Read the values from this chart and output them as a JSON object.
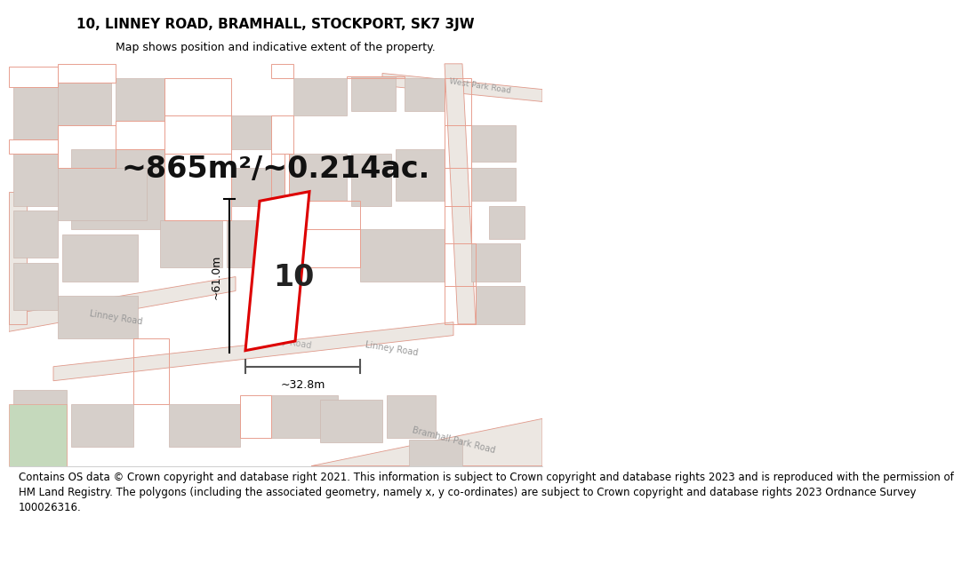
{
  "title_line1": "10, LINNEY ROAD, BRAMHALL, STOCKPORT, SK7 3JW",
  "title_line2": "Map shows position and indicative extent of the property.",
  "area_text": "~865m²/~0.214ac.",
  "label_number": "10",
  "dim_height": "~61.0m",
  "dim_width": "~32.8m",
  "footer_line1": "Contains OS data © Crown copyright and database right 2021. This information is subject to Crown copyright and database rights 2023 and is reproduced with the permission of",
  "footer_line2": "HM Land Registry. The polygons (including the associated geometry, namely x, y co-ordinates) are subject to Crown copyright and database rights 2023 Ordnance Survey",
  "footer_line3": "100026316.",
  "bg_color": "#f2ede8",
  "road_stroke": "#e0998a",
  "block_fill": "#d6cfca",
  "block_stroke": "#ccb8b0",
  "parcel_stroke": "#e8a090",
  "property_color": "#dd0000",
  "property_fill": "#ffffff",
  "green_fill": "#c5d9bc",
  "dim_color": "#333333",
  "road_label_color": "#999999",
  "road_label_size": 7.0,
  "title_fontsize": 11,
  "subtitle_fontsize": 9,
  "area_fontsize": 24,
  "label_fontsize": 24,
  "footer_fontsize": 8.5
}
